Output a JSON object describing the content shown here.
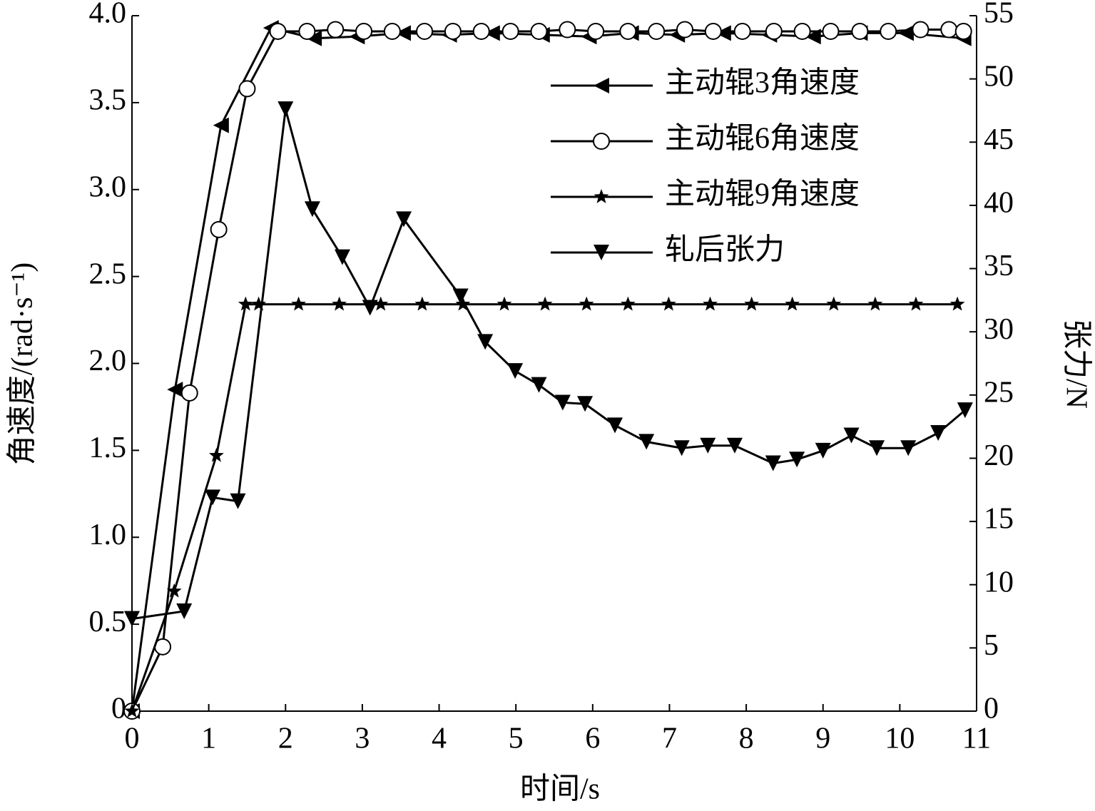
{
  "chart_data": {
    "type": "line",
    "x_label": "时间/s",
    "y_label": "角速度/(rad·s⁻¹)",
    "y2_label": "张力/N",
    "xlim": [
      0,
      11
    ],
    "xticks": [
      0,
      1,
      2,
      3,
      4,
      5,
      6,
      7,
      8,
      9,
      10,
      11
    ],
    "ylim": [
      0,
      4
    ],
    "yticks": [
      0,
      {
        "value": 0.5,
        "label": "0.5"
      },
      {
        "value": 1,
        "label": "1.0"
      },
      {
        "value": 1.5,
        "label": "1.5"
      },
      {
        "value": 2,
        "label": "2.0"
      },
      {
        "value": 2.5,
        "label": "2.5"
      },
      {
        "value": 3,
        "label": "3.0"
      },
      {
        "value": 3.5,
        "label": "3.5"
      },
      {
        "value": 4,
        "label": "4.0"
      }
    ],
    "y2lim": [
      0,
      55
    ],
    "y2ticks": [
      0,
      5,
      10,
      15,
      20,
      25,
      30,
      35,
      40,
      45,
      50,
      55
    ],
    "series": [
      {
        "name": "主动辊3角速度",
        "color": "#000000",
        "marker": "triangle-left",
        "x": [
          0,
          0.56,
          1.16,
          1.81,
          2.37,
          2.93,
          3.53,
          4.13,
          4.69,
          5.34,
          5.95,
          6.5,
          7.1,
          7.7,
          8.3,
          8.87,
          9.48,
          10.08,
          10.83
        ],
        "values": [
          0,
          1.85,
          3.37,
          3.93,
          3.87,
          3.88,
          3.9,
          3.89,
          3.9,
          3.89,
          3.88,
          3.9,
          3.89,
          3.9,
          3.89,
          3.88,
          3.9,
          3.9,
          3.87
        ]
      },
      {
        "name": "主动辊6角速度",
        "color": "#000000",
        "marker": "circle",
        "x": [
          0,
          0.4,
          0.75,
          1.13,
          1.5,
          1.9,
          2.28,
          2.65,
          3.02,
          3.39,
          3.81,
          4.18,
          4.55,
          4.93,
          5.3,
          5.67,
          6.04,
          6.46,
          6.83,
          7.2,
          7.57,
          7.95,
          8.36,
          8.73,
          9.1,
          9.48,
          9.85,
          10.27,
          10.64,
          10.83
        ],
        "values": [
          0,
          0.37,
          1.83,
          2.77,
          3.58,
          3.91,
          3.91,
          3.92,
          3.91,
          3.91,
          3.91,
          3.91,
          3.91,
          3.91,
          3.91,
          3.92,
          3.91,
          3.91,
          3.91,
          3.92,
          3.91,
          3.91,
          3.91,
          3.91,
          3.91,
          3.91,
          3.91,
          3.92,
          3.92,
          3.91
        ]
      },
      {
        "name": "主动辊9角速度",
        "color": "#000000",
        "marker": "star",
        "x": [
          0,
          0.55,
          1.1,
          1.48,
          1.65,
          2.17,
          2.7,
          3.24,
          3.78,
          4.31,
          4.85,
          5.38,
          5.92,
          6.46,
          6.99,
          7.53,
          8.07,
          8.6,
          9.14,
          9.68,
          10.21,
          10.75
        ],
        "values": [
          0,
          0.69,
          1.47,
          2.34,
          2.34,
          2.34,
          2.34,
          2.34,
          2.34,
          2.34,
          2.34,
          2.34,
          2.34,
          2.34,
          2.34,
          2.34,
          2.34,
          2.34,
          2.34,
          2.34,
          2.34,
          2.34
        ]
      },
      {
        "name": "轧后张力",
        "color": "#000000",
        "marker": "triangle-down",
        "axis": "y2",
        "x": [
          0,
          0.68,
          1.05,
          1.38,
          2.0,
          2.35,
          2.74,
          3.1,
          3.54,
          4.28,
          4.6,
          4.99,
          5.3,
          5.61,
          5.9,
          6.29,
          6.7,
          7.16,
          7.5,
          7.85,
          8.35,
          8.66,
          9.0,
          9.37,
          9.7,
          10.11,
          10.5,
          10.85
        ],
        "values": [
          7.3,
          7.9,
          16.9,
          16.6,
          47.6,
          39.7,
          35.9,
          31.9,
          38.9,
          32.8,
          29.2,
          26.9,
          25.8,
          24.4,
          24.3,
          22.6,
          21.3,
          20.8,
          21,
          21,
          19.6,
          19.9,
          20.6,
          21.8,
          20.8,
          20.8,
          22,
          23.8
        ]
      }
    ]
  }
}
